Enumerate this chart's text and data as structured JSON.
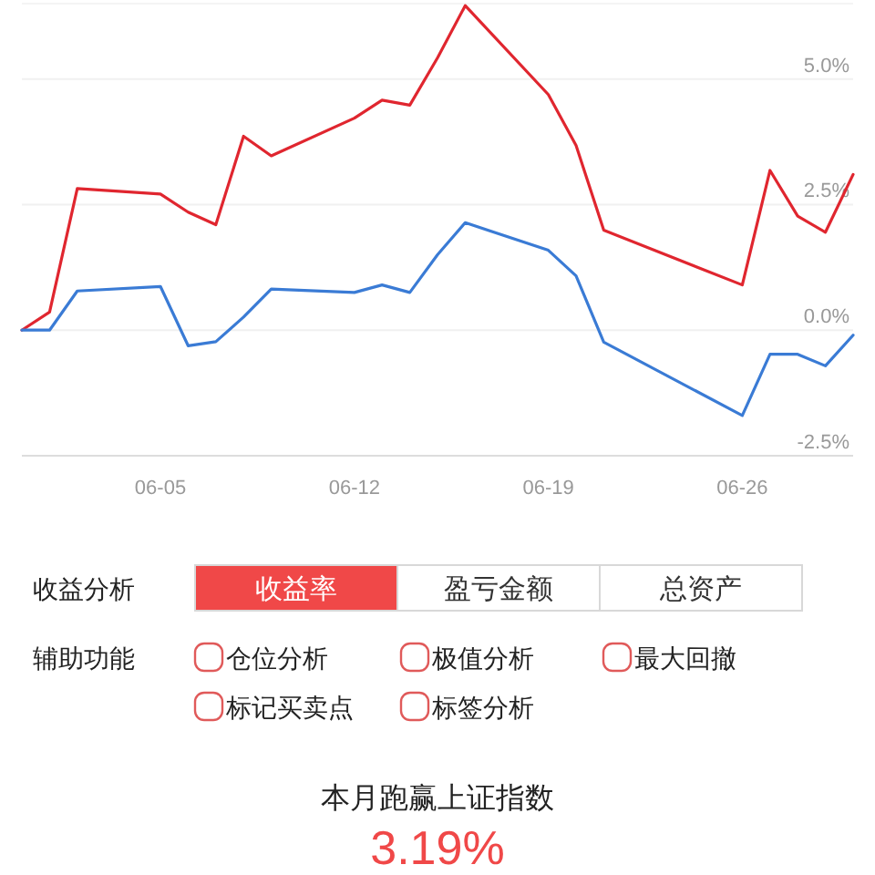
{
  "chart_data": [
    {
      "type": "line",
      "x": [
        "--05-31",
        "--06-01",
        "--06-02",
        "--06-05",
        "--06-06",
        "--06-07",
        "--06-08",
        "--06-09",
        "--06-12",
        "--06-13",
        "--06-14",
        "--06-15",
        "--06-16",
        "--06-19",
        "--06-20",
        "--06-21",
        "--06-26",
        "--06-27",
        "--06-28",
        "--06-29",
        "--06-30"
      ],
      "series": [
        {
          "color": "#e0262f",
          "values": [
            0,
            0.36,
            2.82,
            2.71,
            2.35,
            2.1,
            3.86,
            3.47,
            4.22,
            4.58,
            4.48,
            5.42,
            6.46,
            4.69,
            3.68,
            1.99,
            0.9,
            3.18,
            2.27,
            1.95,
            3.1
          ]
        },
        {
          "color": "#3a7bd5",
          "values": [
            0,
            0,
            0.78,
            0.87,
            -0.31,
            -0.23,
            0.26,
            0.82,
            0.75,
            0.9,
            0.75,
            1.5,
            2.14,
            1.59,
            1.08,
            -0.24,
            -1.7,
            -0.48,
            -0.48,
            -0.71,
            -0.1
          ]
        }
      ],
      "xlim": [
        "--05-31",
        "--06-30"
      ],
      "xticks": [
        {
          "value": "--06-05",
          "label": "06-05"
        },
        {
          "value": "--06-12",
          "label": "06-12"
        },
        {
          "value": "--06-19",
          "label": "06-19"
        },
        {
          "value": "--06-26",
          "label": "06-26"
        }
      ],
      "ylim": [
        -2.5,
        6.5
      ],
      "yticks": [
        {
          "value": -2.5,
          "label": "-2.5%"
        },
        {
          "value": 0,
          "label": "0.0%"
        },
        {
          "value": 2.5,
          "label": "2.5%"
        },
        {
          "value": 5,
          "label": "5.0%"
        }
      ],
      "grid": "y",
      "line_style": "solid",
      "marker": "none"
    },
    {
      "type": "other",
      "annotations": [
        "收益分析",
        "收益率",
        "盈亏金额",
        "总资产",
        "辅助功能",
        "仓位分析",
        "极值分析",
        "最大回撤",
        "标记买卖点",
        "标签分析",
        "本月跑赢上证指数",
        "3.19%"
      ]
    }
  ]
}
